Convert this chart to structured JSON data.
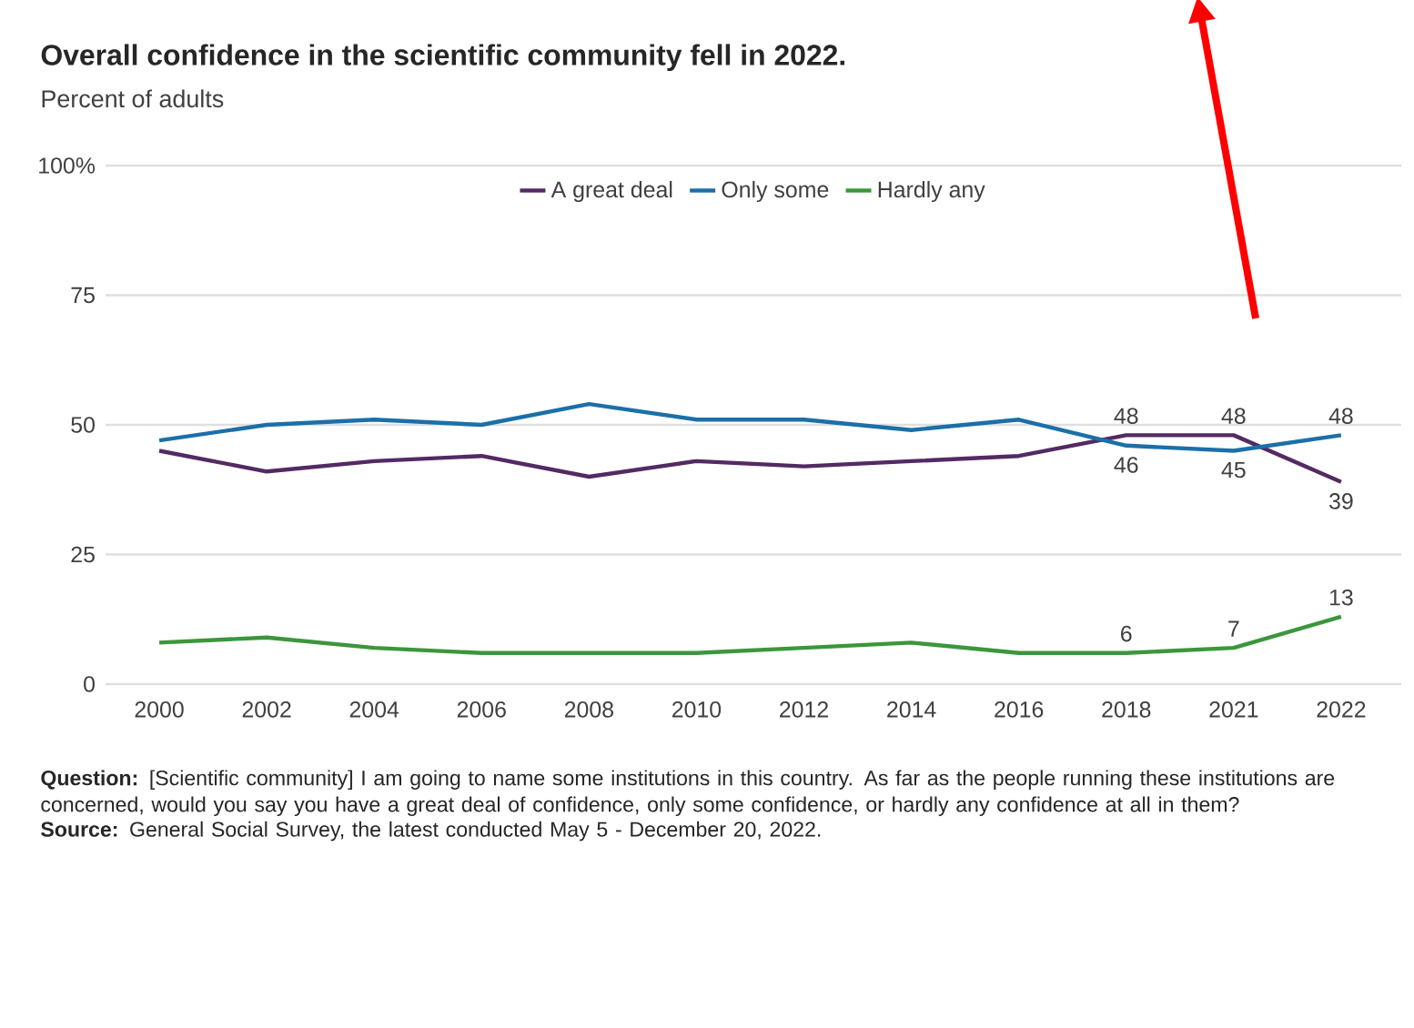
{
  "chart_data": {
    "type": "line",
    "title": "Overall confidence in the scientific community fell in 2022.",
    "subtitle": "Percent of adults",
    "categories": [
      "2000",
      "2002",
      "2004",
      "2006",
      "2008",
      "2010",
      "2012",
      "2014",
      "2016",
      "2018",
      "2021",
      "2022"
    ],
    "series": [
      {
        "name": "A great deal",
        "color": "#532a63",
        "values": [
          45,
          41,
          43,
          44,
          40,
          43,
          42,
          43,
          44,
          48,
          48,
          39
        ],
        "value_labels": [
          null,
          null,
          null,
          null,
          null,
          null,
          null,
          null,
          null,
          "48",
          "48",
          "39"
        ]
      },
      {
        "name": "Only some",
        "color": "#1c6fa8",
        "values": [
          47,
          50,
          51,
          50,
          54,
          51,
          51,
          49,
          51,
          46,
          45,
          48
        ],
        "value_labels": [
          null,
          null,
          null,
          null,
          null,
          null,
          null,
          null,
          null,
          "46",
          "45",
          "48"
        ]
      },
      {
        "name": "Hardly any",
        "color": "#3c963c",
        "values": [
          8,
          9,
          7,
          6,
          6,
          6,
          7,
          8,
          6,
          6,
          7,
          13
        ],
        "value_labels": [
          null,
          null,
          null,
          null,
          null,
          null,
          null,
          null,
          null,
          "6",
          "7",
          "13"
        ]
      }
    ],
    "ylim": [
      0,
      100
    ],
    "yticks": [
      0,
      25,
      50,
      75,
      {
        "value": 100,
        "label": "100%"
      }
    ],
    "grid": "y",
    "legend": "top",
    "marker": "none",
    "line_style": "solid",
    "annotations": [
      "**Question:** [Scientific community] I am going to name some institutions in this country. As far as the people running these institutions are concerned, would you say you have a great deal of confidence, only some confidence, or hardly any confidence at all in them?",
      "**Source:** General Social Survey, the latest conducted May 5 - December 20, 2022."
    ]
  }
}
